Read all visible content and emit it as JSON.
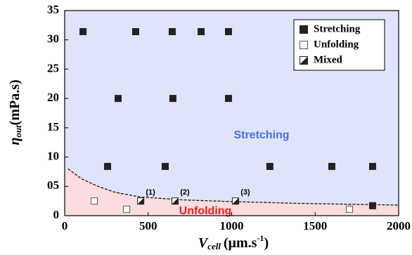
{
  "chart_data": {
    "type": "scatter",
    "xlabel": {
      "symbol": "V",
      "sub": "cell",
      "unit": "(μm.s",
      "sup": "-1",
      "close": ")"
    },
    "ylabel": {
      "symbol": "η",
      "sub": "out",
      "unit": "(mPa.s)"
    },
    "xlim": [
      0,
      2000
    ],
    "xticks": [
      0,
      500,
      1000,
      1500,
      2000
    ],
    "ylim": [
      0,
      35
    ],
    "yticks": [
      0,
      {
        "value": 5,
        "label": "05"
      },
      10,
      15,
      20,
      25,
      30,
      35
    ],
    "legend": "upper right",
    "series": [
      {
        "name": "Stretching",
        "marker": "filled",
        "color": "#222222",
        "x": [
          110,
          425,
          644,
          817,
          981,
          320,
          648,
          981,
          257,
          602,
          1229,
          1600,
          1844,
          1844
        ],
        "y": [
          31.4,
          31.4,
          31.4,
          31.4,
          31.4,
          20,
          20,
          20,
          8.4,
          8.4,
          8.4,
          8.4,
          8.4,
          1.7
        ]
      },
      {
        "name": "Unfolding",
        "marker": "open",
        "color": "#555555",
        "x": [
          177,
          371,
          1705
        ],
        "y": [
          2.5,
          1.1,
          1.1
        ]
      },
      {
        "name": "Mixed",
        "marker": "half",
        "color": "#222222",
        "x": [
          455,
          661,
          1023
        ],
        "y": [
          2.5,
          2.5,
          2.5
        ],
        "annotations": [
          "(1)",
          "(2)",
          "(3)"
        ]
      }
    ],
    "boundary": {
      "x": [
        20,
        100,
        200,
        300,
        450,
        700,
        1000,
        1400,
        2000
      ],
      "y": [
        8.0,
        6.3,
        5.0,
        4.0,
        3.2,
        2.7,
        2.4,
        2.1,
        1.8
      ]
    },
    "regions": [
      {
        "label": "Stretching",
        "color": "#4a6fe3",
        "fill": "#dfe4fb"
      },
      {
        "label": "Unfolding",
        "color": "#e8201f",
        "fill": "#fcdcdc"
      }
    ]
  }
}
